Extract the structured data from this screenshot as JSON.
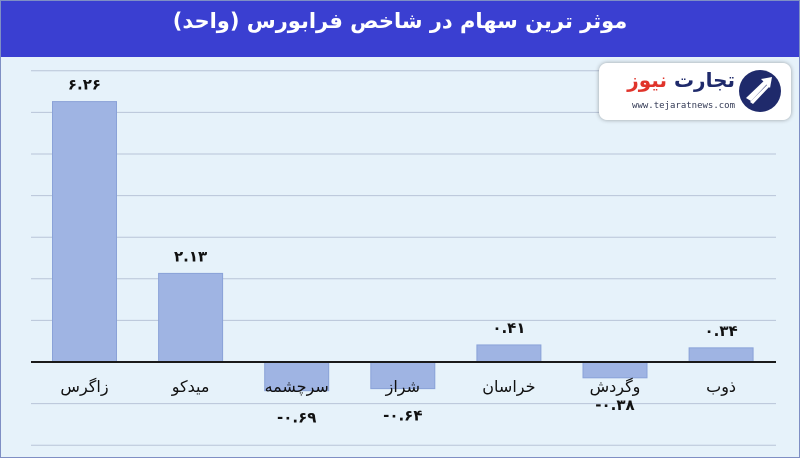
{
  "brand": {
    "name_part1": "تجارت",
    "name_part2": "نیوز",
    "url": "www.tejaratnews.com",
    "accent_color": "#e0342b",
    "navy_color": "#1f2a6b"
  },
  "colors": {
    "header_background": "#3a3fd1",
    "plot_background": "#e6f2fa",
    "bar_fill": "#9fb4e3",
    "bar_stroke": "#8aa2d8",
    "gridline": "#b8c4d8"
  },
  "chart_data": {
    "type": "bar",
    "title": "موثر ترین سهام در شاخص فرابورس (واحد)",
    "xlabel": "",
    "ylabel": "",
    "ylim": [
      -2.0,
      7.0
    ],
    "grid": true,
    "legend": "none",
    "categories": [
      "زاگرس",
      "میدکو",
      "سرچشمه",
      "شراز",
      "خراسان",
      "وگردش",
      "ذوب"
    ],
    "values": [
      6.26,
      2.13,
      -0.69,
      -0.64,
      0.41,
      -0.38,
      0.34
    ],
    "value_labels": [
      "۶.۲۶",
      "۲.۱۳",
      "-۰.۶۹",
      "-۰.۶۴",
      "۰.۴۱",
      "-۰.۳۸",
      "۰.۳۴"
    ]
  }
}
